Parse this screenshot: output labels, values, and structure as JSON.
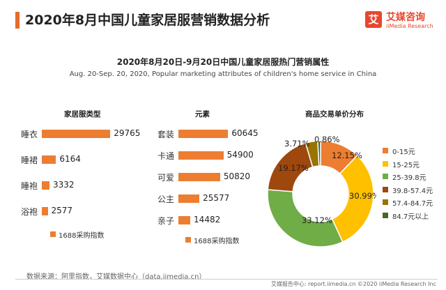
{
  "header": {
    "title": "2020年8月中国儿童家居服营销数据分析",
    "logo_cn": "艾媒咨询",
    "logo_en": "iiMedia Research",
    "logo_mark": "艾"
  },
  "colors": {
    "accent": "#e46c2c",
    "bar": "#ed7d31",
    "brand": "#e8472f"
  },
  "chart_data": [
    {
      "type": "bar",
      "title": "家居服类型",
      "categories": [
        "睡衣",
        "睡裙",
        "睡袍",
        "浴袍"
      ],
      "values": [
        29765,
        6164,
        3332,
        2577
      ],
      "legend": "1688采购指数",
      "xlim": [
        0,
        30000
      ]
    },
    {
      "type": "bar",
      "title": "元素",
      "categories": [
        "套装",
        "卡通",
        "可爱",
        "公主",
        "亲子"
      ],
      "values": [
        60645,
        54900,
        50820,
        25577,
        14482
      ],
      "legend": "1688采购指数",
      "xlim": [
        0,
        62000
      ]
    },
    {
      "type": "pie",
      "title": "商品交易单价分布",
      "categories": [
        "0-15元",
        "15-25元",
        "25-39.8元",
        "39.8-57.4元",
        "57.4-84.7元",
        "84.7元以上"
      ],
      "values": [
        12.15,
        30.99,
        33.12,
        19.17,
        3.71,
        0.86
      ],
      "value_labels": [
        "12.15%",
        "30.99%",
        "33.12%",
        "19.17%",
        "3.71%",
        "0.86%"
      ],
      "colors": [
        "#ed7d31",
        "#ffc000",
        "#70ad47",
        "#9e480e",
        "#997300",
        "#43682b"
      ]
    }
  ],
  "subtitle": "2020年8月20日-9月20日中国儿童家居服热门营销属性",
  "subtitle_en": "Aug. 20-Sep. 20, 2020, Popular marketing attributes of children's home service in China",
  "source": "数据来源：阿里指数，艾媒数据中心（data.iimedia.cn）",
  "footer": "艾媒报告中心: report.iimedia.cn  ©2020  iiMedia Research  Inc"
}
